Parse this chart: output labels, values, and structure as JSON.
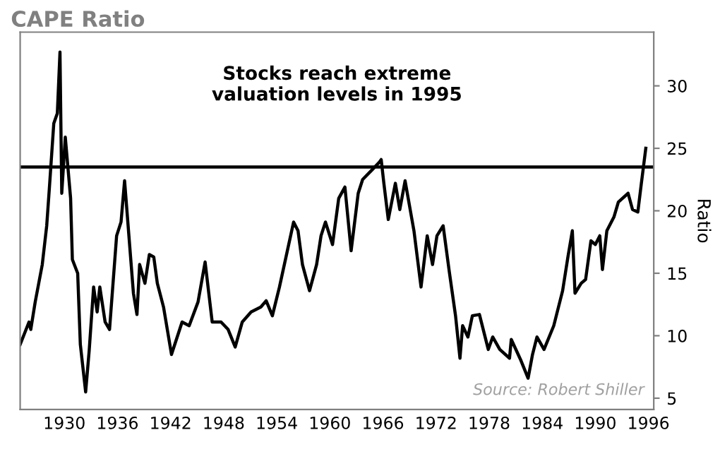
{
  "chart_data": {
    "type": "line",
    "title": "CAPE Ratio",
    "ylabel": "Ratio",
    "annotations": [
      "Stocks reach extreme\nvaluation levels in 1995",
      "Source: Robert Shiller"
    ],
    "x": [
      1925.0,
      1926.0,
      1926.2,
      1926.7,
      1927.5,
      1928.0,
      1928.3,
      1928.8,
      1929.2,
      1929.5,
      1929.7,
      1930.1,
      1930.7,
      1930.9,
      1931.5,
      1931.8,
      1932.4,
      1932.8,
      1933.3,
      1933.7,
      1934.0,
      1934.6,
      1935.1,
      1935.9,
      1936.4,
      1936.8,
      1937.8,
      1938.2,
      1938.5,
      1939.1,
      1939.6,
      1940.1,
      1940.5,
      1941.2,
      1942.1,
      1943.3,
      1944.1,
      1945.1,
      1945.9,
      1946.7,
      1947.7,
      1948.5,
      1949.3,
      1950.1,
      1951.1,
      1952.2,
      1952.8,
      1953.5,
      1954.3,
      1955.1,
      1955.9,
      1956.4,
      1956.9,
      1957.7,
      1958.5,
      1959.0,
      1959.5,
      1960.3,
      1961.0,
      1961.7,
      1962.4,
      1963.2,
      1963.7,
      1964.8,
      1965.6,
      1965.8,
      1966.1,
      1966.6,
      1967.4,
      1967.9,
      1968.5,
      1969.5,
      1970.3,
      1971.0,
      1971.6,
      1972.1,
      1972.8,
      1973.5,
      1974.2,
      1974.7,
      1975.0,
      1975.6,
      1976.1,
      1976.9,
      1977.9,
      1978.4,
      1979.2,
      1980.3,
      1980.5,
      1981.6,
      1982.4,
      1982.9,
      1983.4,
      1984.2,
      1985.3,
      1986.3,
      1986.9,
      1987.4,
      1987.7,
      1988.4,
      1988.9,
      1989.5,
      1990.0,
      1990.5,
      1990.8,
      1991.3,
      1992.1,
      1992.6,
      1993.7,
      1994.2,
      1994.8,
      1995.2,
      1995.7
    ],
    "series": [
      {
        "color": "#000000",
        "values": [
          9.3,
          11.1,
          10.5,
          12.7,
          15.7,
          18.8,
          21.8,
          27.0,
          27.8,
          32.7,
          21.4,
          25.9,
          21.0,
          16.1,
          15.0,
          9.3,
          5.5,
          8.8,
          13.9,
          11.9,
          13.9,
          11.1,
          10.5,
          18.0,
          19.1,
          22.4,
          13.4,
          11.7,
          15.7,
          14.2,
          16.5,
          16.3,
          14.2,
          12.3,
          8.5,
          11.1,
          10.8,
          12.7,
          15.9,
          11.1,
          11.1,
          10.5,
          9.1,
          11.1,
          11.9,
          12.3,
          12.8,
          11.6,
          13.9,
          16.5,
          19.1,
          18.4,
          15.7,
          13.6,
          15.7,
          18.0,
          19.1,
          17.3,
          21.0,
          21.9,
          16.8,
          21.4,
          22.5,
          23.3,
          23.9,
          24.1,
          22.2,
          19.3,
          22.2,
          20.1,
          22.4,
          18.4,
          13.9,
          18.0,
          15.7,
          18.0,
          18.8,
          15.1,
          11.6,
          8.2,
          10.8,
          9.9,
          11.6,
          11.7,
          8.9,
          9.9,
          8.9,
          8.2,
          9.7,
          8.0,
          6.6,
          8.5,
          9.9,
          8.9,
          10.8,
          13.6,
          16.3,
          18.4,
          13.4,
          14.2,
          14.5,
          17.6,
          17.3,
          18.0,
          15.3,
          18.4,
          19.5,
          20.7,
          21.4,
          20.1,
          19.9,
          22.2,
          25.0
        ]
      }
    ],
    "xlim": [
      1925,
      1996.6
    ],
    "ylim": [
      4.1,
      34.3
    ],
    "xticks": [
      1930,
      1936,
      1942,
      1948,
      1954,
      1960,
      1966,
      1972,
      1978,
      1984,
      1990,
      1996
    ],
    "yticks": [
      5,
      10,
      15,
      20,
      25,
      30
    ],
    "ref_lines": [
      {
        "axis": "y",
        "value": 23.5,
        "label": null,
        "color": "#000000"
      }
    ],
    "grid": false,
    "marker": "none",
    "line_style": "solid"
  }
}
